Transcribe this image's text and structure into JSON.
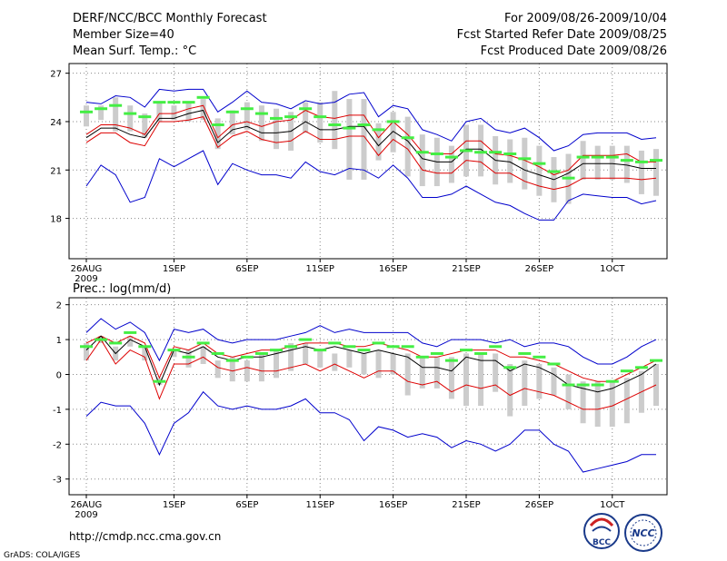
{
  "header": {
    "title": "DERF/NCC/BCC Monthly Forecast",
    "member_size": "Member Size=40",
    "forecast_period": "For 2009/08/26-2009/10/04",
    "refer_date": "Fcst Started Refer Date 2009/08/25",
    "produced_date": "Fcst Produced Date 2009/08/26"
  },
  "footer": {
    "url": "http://cmdp.ncc.cma.gov.cn",
    "credit": "GrADS: COLA/IGES",
    "logo_bcc": "BCC",
    "logo_ncc": "NCC"
  },
  "colors": {
    "envelope": "#0000cc",
    "spread": "#dd0000",
    "mean": "#000000",
    "observed": "#44ee44",
    "box": "#cccccc",
    "grid": "#888888"
  },
  "chart_data": [
    {
      "type": "line",
      "title": "Mean Surf. Temp.: °C",
      "xlabel": "",
      "ylabel": "",
      "x_tick_labels": [
        "26AUG",
        "1SEP",
        "6SEP",
        "11SEP",
        "16SEP",
        "21SEP",
        "26SEP",
        "1OCT"
      ],
      "x_tick_days": [
        0,
        6,
        11,
        16,
        21,
        26,
        31,
        36
      ],
      "x_sublabel": "2009",
      "ylim": [
        15.5,
        27.6
      ],
      "y_ticks": [
        18,
        21,
        24,
        27
      ],
      "grid": true,
      "x_days": [
        0,
        1,
        2,
        3,
        4,
        5,
        6,
        7,
        8,
        9,
        10,
        11,
        12,
        13,
        14,
        15,
        16,
        17,
        18,
        19,
        20,
        21,
        22,
        23,
        24,
        25,
        26,
        27,
        28,
        29,
        30,
        31,
        32,
        33,
        34,
        35,
        36,
        37,
        38,
        39
      ],
      "series": [
        {
          "name": "max",
          "values": [
            25.2,
            25.1,
            25.6,
            25.5,
            24.9,
            26.0,
            25.9,
            26.0,
            26.0,
            24.6,
            25.2,
            25.9,
            25.2,
            25.1,
            24.8,
            25.3,
            25.1,
            25.2,
            25.7,
            25.8,
            24.3,
            25.0,
            24.8,
            23.5,
            23.2,
            22.8,
            24.0,
            24.2,
            23.5,
            23.3,
            23.6,
            23.0,
            22.2,
            22.5,
            23.2,
            23.3,
            23.3,
            23.3,
            22.9,
            23.0
          ]
        },
        {
          "name": "upper",
          "values": [
            23.2,
            23.8,
            23.8,
            23.6,
            23.2,
            24.5,
            24.5,
            24.8,
            25.0,
            23.0,
            23.8,
            24.0,
            23.7,
            24.0,
            24.1,
            24.7,
            24.3,
            24.2,
            24.4,
            24.4,
            23.0,
            24.0,
            23.2,
            22.1,
            22.0,
            22.0,
            22.8,
            22.8,
            22.0,
            21.9,
            21.6,
            21.2,
            20.7,
            21.0,
            21.9,
            21.9,
            21.9,
            22.0,
            21.5,
            21.5
          ]
        },
        {
          "name": "mean",
          "values": [
            23.0,
            23.6,
            23.6,
            23.2,
            23.0,
            24.2,
            24.2,
            24.5,
            24.7,
            22.7,
            23.5,
            23.7,
            23.3,
            23.3,
            23.4,
            24.0,
            23.5,
            23.5,
            23.7,
            23.7,
            22.5,
            23.4,
            22.8,
            21.7,
            21.5,
            21.5,
            22.3,
            22.3,
            21.6,
            21.5,
            21.0,
            20.7,
            20.4,
            20.8,
            21.4,
            21.4,
            21.4,
            21.3,
            21.1,
            21.1
          ]
        },
        {
          "name": "lower",
          "values": [
            22.7,
            23.3,
            23.3,
            22.7,
            22.5,
            24.0,
            24.0,
            24.1,
            24.3,
            22.4,
            23.1,
            23.4,
            22.9,
            22.7,
            22.8,
            23.4,
            22.9,
            22.9,
            23.1,
            23.1,
            21.9,
            22.9,
            22.3,
            21.0,
            20.8,
            20.8,
            21.6,
            21.5,
            20.8,
            20.8,
            20.3,
            20.0,
            19.8,
            20.0,
            20.5,
            20.5,
            20.5,
            20.5,
            20.4,
            20.5
          ]
        },
        {
          "name": "min",
          "values": [
            20.0,
            21.3,
            20.7,
            19.0,
            19.3,
            21.7,
            21.2,
            21.7,
            22.2,
            20.1,
            21.4,
            21.0,
            20.7,
            20.7,
            20.5,
            21.5,
            20.9,
            20.7,
            21.1,
            21.0,
            20.5,
            21.3,
            20.5,
            19.3,
            19.3,
            19.5,
            20.0,
            19.5,
            19.0,
            18.8,
            18.3,
            17.9,
            17.9,
            19.1,
            19.5,
            19.4,
            19.3,
            19.3,
            18.9,
            19.1
          ]
        },
        {
          "name": "observed",
          "values": [
            24.6,
            24.8,
            25.0,
            24.5,
            24.3,
            25.2,
            25.2,
            25.2,
            25.5,
            23.8,
            24.6,
            24.8,
            24.5,
            24.2,
            24.3,
            24.8,
            24.3,
            23.8,
            23.6,
            23.8,
            23.5,
            24.0,
            23.0,
            22.1,
            22.0,
            21.8,
            22.2,
            22.1,
            22.1,
            22.0,
            21.7,
            21.4,
            20.9,
            20.5,
            21.8,
            21.8,
            21.8,
            21.6,
            21.5,
            21.6
          ]
        },
        {
          "name": "box_top",
          "values": [
            25.0,
            25.0,
            25.5,
            25.0,
            24.5,
            25.2,
            25.0,
            25.2,
            25.4,
            24.2,
            24.7,
            25.2,
            25.0,
            24.8,
            24.6,
            25.2,
            25.2,
            25.9,
            25.4,
            25.4,
            23.9,
            24.6,
            24.3,
            23.2,
            23.0,
            22.5,
            23.8,
            23.8,
            23.1,
            22.9,
            23.0,
            22.5,
            21.8,
            22.0,
            22.8,
            22.5,
            22.5,
            22.5,
            22.2,
            22.3
          ]
        },
        {
          "name": "box_bottom",
          "values": [
            23.7,
            24.1,
            23.4,
            23.4,
            23.0,
            24.0,
            24.1,
            24.0,
            24.1,
            22.3,
            23.2,
            23.5,
            22.8,
            22.3,
            22.2,
            23.3,
            22.7,
            22.3,
            20.4,
            20.4,
            21.6,
            22.1,
            20.6,
            20.0,
            20.0,
            20.2,
            20.6,
            20.6,
            20.1,
            20.2,
            19.8,
            19.4,
            19.0,
            18.9,
            20.4,
            20.4,
            20.4,
            20.2,
            19.5,
            19.4
          ]
        }
      ]
    },
    {
      "type": "line",
      "title": "Prec.: log(mm/d)",
      "xlabel": "",
      "ylabel": "",
      "x_tick_labels": [
        "26AUG",
        "1SEP",
        "6SEP",
        "11SEP",
        "16SEP",
        "21SEP",
        "26SEP",
        "1OCT"
      ],
      "x_tick_days": [
        0,
        6,
        11,
        16,
        21,
        26,
        31,
        36
      ],
      "x_sublabel": "2009",
      "ylim": [
        -3.45,
        2.2
      ],
      "y_ticks": [
        -3,
        -2,
        -1,
        0,
        1,
        2
      ],
      "grid": true,
      "x_days": [
        0,
        1,
        2,
        3,
        4,
        5,
        6,
        7,
        8,
        9,
        10,
        11,
        12,
        13,
        14,
        15,
        16,
        17,
        18,
        19,
        20,
        21,
        22,
        23,
        24,
        25,
        26,
        27,
        28,
        29,
        30,
        31,
        32,
        33,
        34,
        35,
        36,
        37,
        38,
        39
      ],
      "series": [
        {
          "name": "max",
          "values": [
            1.2,
            1.6,
            1.3,
            1.5,
            1.2,
            0.4,
            1.3,
            1.2,
            1.3,
            1.0,
            0.9,
            1.0,
            1.0,
            1.0,
            1.1,
            1.2,
            1.4,
            1.2,
            1.3,
            1.2,
            1.2,
            1.2,
            1.2,
            0.9,
            0.8,
            1.0,
            1.0,
            1.0,
            0.9,
            1.0,
            0.8,
            0.9,
            0.9,
            0.8,
            0.5,
            0.3,
            0.3,
            0.5,
            0.8,
            1.0
          ]
        },
        {
          "name": "upper",
          "values": [
            0.9,
            1.1,
            0.9,
            1.1,
            0.9,
            -0.1,
            0.8,
            0.7,
            0.9,
            0.6,
            0.5,
            0.6,
            0.7,
            0.7,
            0.8,
            0.9,
            0.9,
            0.9,
            0.8,
            0.8,
            0.9,
            0.8,
            0.7,
            0.5,
            0.5,
            0.6,
            0.7,
            0.7,
            0.7,
            0.5,
            0.5,
            0.4,
            0.3,
            0.1,
            -0.1,
            -0.2,
            -0.2,
            0.0,
            0.2,
            0.4
          ]
        },
        {
          "name": "mean",
          "values": [
            0.7,
            1.1,
            0.6,
            1.0,
            0.8,
            -0.3,
            0.7,
            0.6,
            0.8,
            0.5,
            0.4,
            0.5,
            0.5,
            0.6,
            0.7,
            0.8,
            0.7,
            0.8,
            0.7,
            0.6,
            0.7,
            0.6,
            0.5,
            0.2,
            0.2,
            0.1,
            0.5,
            0.4,
            0.4,
            0.1,
            0.3,
            0.2,
            0.0,
            -0.3,
            -0.4,
            -0.5,
            -0.4,
            -0.2,
            0.0,
            0.3
          ]
        },
        {
          "name": "lower",
          "values": [
            0.4,
            1.0,
            0.3,
            0.7,
            0.5,
            -0.7,
            0.3,
            0.3,
            0.5,
            0.2,
            0.1,
            0.2,
            0.1,
            0.1,
            0.2,
            0.3,
            0.1,
            0.3,
            0.1,
            -0.1,
            0.1,
            0.1,
            -0.2,
            -0.3,
            -0.2,
            -0.5,
            -0.3,
            -0.4,
            -0.3,
            -0.6,
            -0.4,
            -0.5,
            -0.6,
            -0.8,
            -1.0,
            -1.0,
            -0.9,
            -0.7,
            -0.5,
            -0.3
          ]
        },
        {
          "name": "min",
          "values": [
            -1.2,
            -0.8,
            -0.9,
            -0.9,
            -1.4,
            -2.3,
            -1.4,
            -1.1,
            -0.5,
            -0.9,
            -1.0,
            -0.9,
            -1.0,
            -1.0,
            -0.9,
            -0.7,
            -1.1,
            -1.1,
            -1.3,
            -1.9,
            -1.5,
            -1.6,
            -1.8,
            -1.7,
            -1.8,
            -2.1,
            -1.9,
            -2.0,
            -2.2,
            -2.0,
            -1.6,
            -1.6,
            -2.0,
            -2.2,
            -2.8,
            -2.7,
            -2.6,
            -2.5,
            -2.3,
            -2.3
          ]
        },
        {
          "name": "observed",
          "values": [
            0.8,
            1.0,
            0.9,
            1.2,
            0.8,
            -0.2,
            0.7,
            0.5,
            0.9,
            0.6,
            0.4,
            0.5,
            0.6,
            0.7,
            0.8,
            1.0,
            0.7,
            0.9,
            0.8,
            0.7,
            0.9,
            0.8,
            0.8,
            0.5,
            0.6,
            0.4,
            0.7,
            0.6,
            0.8,
            0.2,
            0.6,
            0.5,
            0.3,
            -0.3,
            -0.3,
            -0.3,
            -0.2,
            0.1,
            0.2,
            0.4
          ]
        },
        {
          "name": "box_top",
          "values": [
            0.9,
            1.1,
            0.8,
            1.1,
            0.8,
            -0.1,
            0.7,
            0.7,
            0.8,
            0.4,
            0.5,
            0.4,
            0.6,
            0.7,
            0.9,
            0.9,
            0.7,
            0.6,
            0.7,
            0.6,
            0.7,
            0.6,
            0.6,
            0.5,
            0.5,
            0.5,
            0.6,
            0.6,
            0.6,
            0.3,
            0.4,
            0.3,
            0.2,
            0.0,
            -0.2,
            -0.2,
            -0.2,
            -0.1,
            0.1,
            0.3
          ]
        },
        {
          "name": "box_bottom",
          "values": [
            0.4,
            0.9,
            0.4,
            0.8,
            0.4,
            -0.3,
            0.5,
            0.2,
            0.3,
            -0.1,
            -0.2,
            -0.2,
            -0.2,
            -0.1,
            0.1,
            0.3,
            0.2,
            0.1,
            0.2,
            0.0,
            -0.1,
            0.0,
            -0.6,
            -0.4,
            -0.4,
            -0.7,
            -0.9,
            -0.9,
            -0.5,
            -1.2,
            -0.9,
            -0.7,
            -0.6,
            -1.0,
            -1.4,
            -1.5,
            -1.5,
            -1.4,
            -1.1,
            -0.9
          ]
        }
      ]
    }
  ]
}
